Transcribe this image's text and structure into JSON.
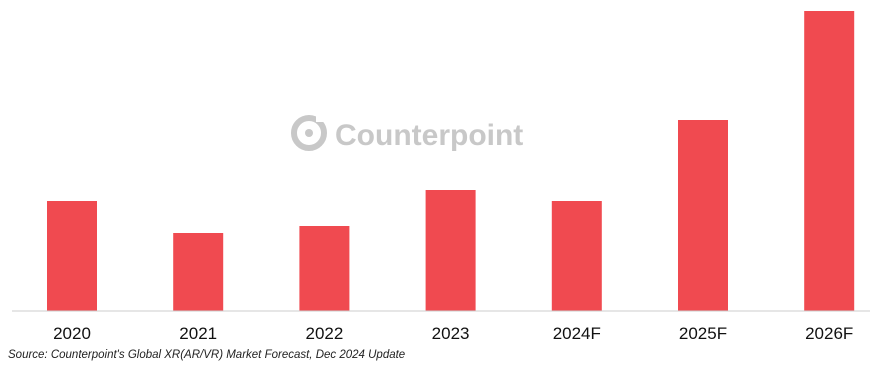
{
  "chart_data": {
    "type": "bar",
    "categories": [
      "2020",
      "2021",
      "2022",
      "2023",
      "2024F",
      "2025F",
      "2026F"
    ],
    "values": [
      110,
      78,
      85,
      121,
      110,
      191,
      300
    ],
    "title": "",
    "xlabel": "",
    "ylabel": "",
    "ylim": [
      0,
      300
    ],
    "y_axis_shown": false,
    "grid": false,
    "legend": "none",
    "bar_color": "#f04a50"
  },
  "watermark": {
    "text": "Counterpoint",
    "icon": "counterpoint-logo-icon",
    "color": "#c8c8c8"
  },
  "source": "Source: Counterpoint's Global XR(AR/VR) Market Forecast, Dec 2024 Update"
}
